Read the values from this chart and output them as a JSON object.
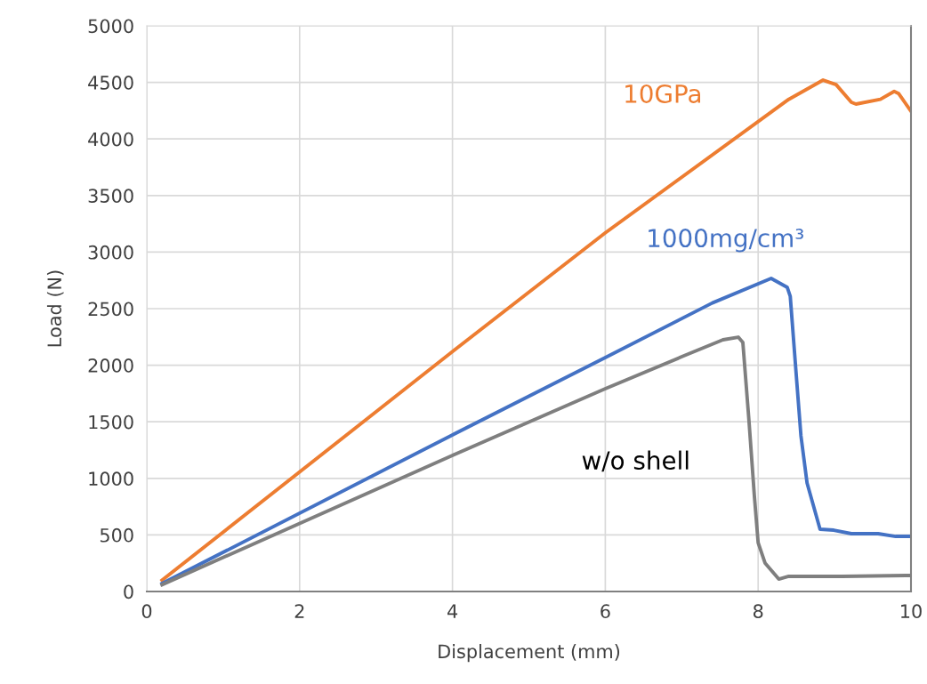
{
  "chart_data": {
    "type": "line",
    "xlabel": "Displacement (mm)",
    "ylabel": "Load (N)",
    "xlim": [
      0,
      10
    ],
    "xticks": [
      0,
      2,
      4,
      6,
      8,
      10
    ],
    "ylim": [
      0,
      5000
    ],
    "yticks": [
      0,
      500,
      1000,
      1500,
      2000,
      2500,
      3000,
      3500,
      4000,
      4500,
      5000
    ],
    "grid": true,
    "legend": false,
    "marker": "none",
    "line_style": "solid",
    "series": [
      {
        "name": "10GPa",
        "color": "#ed7d31",
        "x": [
          0.2,
          4,
          6,
          8.4,
          8.85,
          9.02,
          9.22,
          9.28,
          9.6,
          9.78,
          9.84,
          10
        ],
        "values": [
          100,
          2120,
          3170,
          4350,
          4520,
          4480,
          4324,
          4308,
          4350,
          4420,
          4400,
          4245
        ]
      },
      {
        "name": "1000mg/cm³",
        "color": "#4472c4",
        "x": [
          0.2,
          4,
          6,
          7.4,
          8.17,
          8.38,
          8.42,
          8.5,
          8.56,
          8.64,
          8.81,
          8.99,
          9.22,
          9.57,
          9.8,
          10
        ],
        "values": [
          70,
          1384,
          2068,
          2550,
          2767,
          2689,
          2610,
          1902,
          1376,
          959,
          550,
          542,
          511,
          511,
          487,
          487
        ]
      },
      {
        "name": "w/o shell",
        "color": "#7f7f7f",
        "x": [
          0.2,
          4,
          6,
          7,
          7.54,
          7.74,
          7.8,
          7.88,
          7.95,
          8,
          8.09,
          8.27,
          8.4,
          9.1,
          10
        ],
        "values": [
          60,
          1203,
          1792,
          2075,
          2225,
          2248,
          2201,
          1509,
          849,
          432,
          252,
          110,
          134,
          134,
          142
        ]
      }
    ]
  }
}
